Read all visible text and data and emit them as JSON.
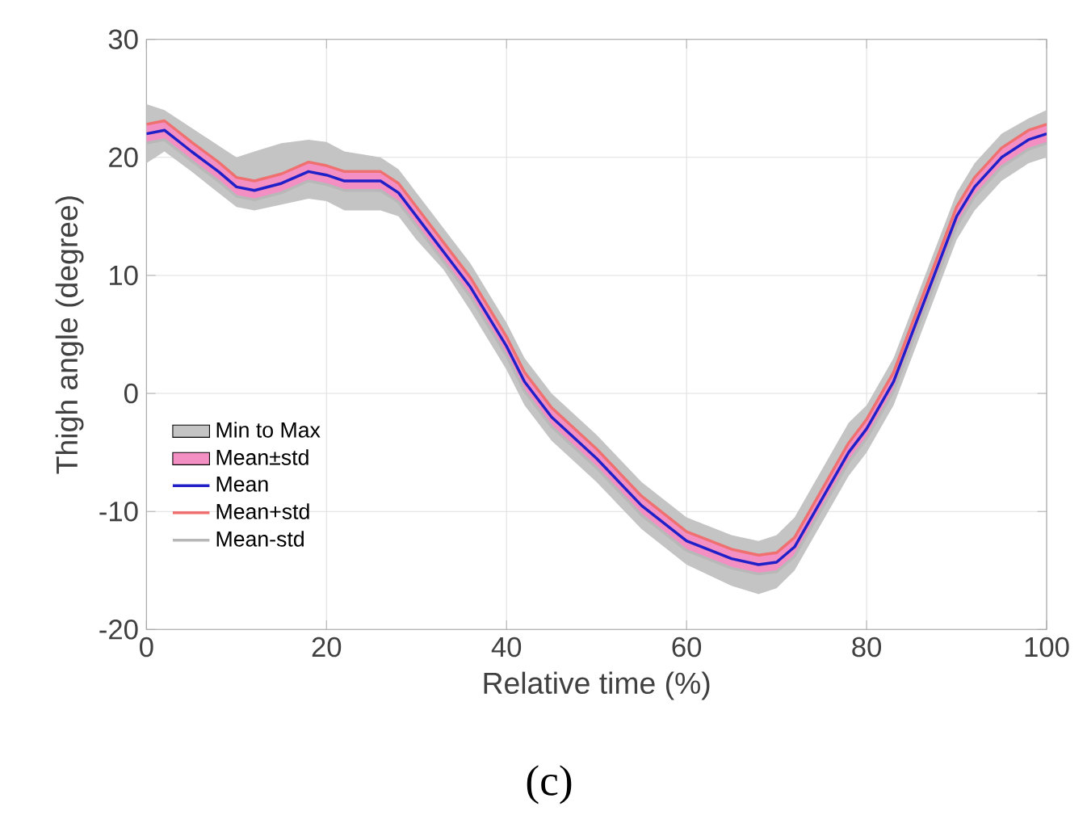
{
  "chart_data": {
    "type": "line",
    "xlabel": "Relative time (%)",
    "ylabel": "Thigh angle (degree)",
    "x": [
      0,
      2,
      5,
      8,
      10,
      12,
      15,
      18,
      20,
      22,
      26,
      28,
      30,
      33,
      36,
      40,
      42,
      45,
      50,
      55,
      60,
      65,
      68,
      70,
      72,
      75,
      78,
      80,
      83,
      86,
      88,
      90,
      92,
      95,
      98,
      100
    ],
    "series": [
      {
        "name": "Min to Max",
        "type": "area",
        "color": "#c4c4c4",
        "values": [
          null,
          null,
          null,
          null,
          null,
          null,
          null,
          null,
          null,
          null,
          null,
          null,
          null,
          null,
          null,
          null,
          null,
          null,
          null,
          null,
          null,
          null,
          null,
          null,
          null,
          null,
          null,
          null,
          null,
          null,
          null,
          null,
          null,
          null,
          null,
          null
        ],
        "upper": [
          24.5,
          24,
          22.5,
          21,
          20,
          20.5,
          21.2,
          21.5,
          21.3,
          20.5,
          20,
          19,
          17,
          14,
          11,
          6,
          3,
          0,
          -3.5,
          -7.5,
          -10.5,
          -12,
          -12.5,
          -12,
          -10.5,
          -6.5,
          -2.5,
          -1,
          3,
          9,
          13,
          17,
          19.5,
          22,
          23.3,
          24
        ],
        "lower": [
          19.5,
          20.5,
          18.8,
          17,
          15.8,
          15.5,
          16,
          16.5,
          16.3,
          15.5,
          15.5,
          15,
          13,
          10.5,
          7,
          2,
          -1,
          -4,
          -7.5,
          -11.5,
          -14.5,
          -16.3,
          -17,
          -16.5,
          -15,
          -11,
          -7,
          -5,
          -1,
          5,
          9,
          13,
          15.5,
          18,
          19.5,
          20
        ]
      },
      {
        "name": "Mean±std",
        "type": "area",
        "color": "#f48fc4",
        "values": [
          null,
          null,
          null,
          null,
          null,
          null,
          null,
          null,
          null,
          null,
          null,
          null,
          null,
          null,
          null,
          null,
          null,
          null,
          null,
          null,
          null,
          null,
          null,
          null,
          null,
          null,
          null,
          null,
          null,
          null,
          null,
          null,
          null,
          null,
          null,
          null
        ],
        "upper": [
          22.8,
          23.1,
          21.3,
          19.6,
          18.3,
          18,
          18.6,
          19.6,
          19.3,
          18.8,
          18.8,
          17.8,
          15.8,
          12.8,
          9.8,
          4.8,
          1.8,
          -1.2,
          -4.7,
          -8.7,
          -11.7,
          -13.2,
          -13.7,
          -13.5,
          -12.2,
          -8.2,
          -4.2,
          -2.2,
          1.8,
          7.8,
          11.8,
          15.8,
          18.3,
          20.8,
          22.3,
          22.8
        ],
        "lower": [
          21.2,
          21.5,
          19.7,
          18,
          16.7,
          16.4,
          17,
          18,
          17.7,
          17.2,
          17.2,
          16.2,
          14.2,
          11.2,
          8.2,
          3.2,
          0.2,
          -2.8,
          -6.3,
          -10.3,
          -13.3,
          -14.8,
          -15.3,
          -15.1,
          -13.8,
          -9.8,
          -5.8,
          -3.8,
          0.2,
          6.2,
          10.2,
          14.2,
          16.7,
          19.2,
          20.7,
          21.2
        ]
      },
      {
        "name": "Mean",
        "color": "#2020c8",
        "values": [
          22,
          22.3,
          20.5,
          18.8,
          17.5,
          17.2,
          17.8,
          18.8,
          18.5,
          18,
          18,
          17,
          15,
          12,
          9,
          4,
          1,
          -2,
          -5.5,
          -9.5,
          -12.5,
          -14,
          -14.5,
          -14.3,
          -13,
          -9,
          -5,
          -3,
          1,
          7,
          11,
          15,
          17.5,
          20,
          21.5,
          22
        ]
      },
      {
        "name": "Mean+std",
        "type": "line",
        "color": "#f07070",
        "values": [
          22.8,
          23.1,
          21.3,
          19.6,
          18.3,
          18,
          18.6,
          19.6,
          19.3,
          18.8,
          18.8,
          17.8,
          15.8,
          12.8,
          9.8,
          4.8,
          1.8,
          -1.2,
          -4.7,
          -8.7,
          -11.7,
          -13.2,
          -13.7,
          -13.5,
          -12.2,
          -8.2,
          -4.2,
          -2.2,
          1.8,
          7.8,
          11.8,
          15.8,
          18.3,
          20.8,
          22.3,
          22.8
        ]
      },
      {
        "name": "Mean-std",
        "type": "line",
        "color": "#b8b8b8",
        "values": [
          21.2,
          21.5,
          19.7,
          18,
          16.7,
          16.4,
          17,
          18,
          17.7,
          17.2,
          17.2,
          16.2,
          14.2,
          11.2,
          8.2,
          3.2,
          0.2,
          -2.8,
          -6.3,
          -10.3,
          -13.3,
          -14.8,
          -15.3,
          -15.1,
          -13.8,
          -9.8,
          -5.8,
          -3.8,
          0.2,
          6.2,
          10.2,
          14.2,
          16.7,
          19.2,
          20.7,
          21.2
        ]
      }
    ],
    "xlim": [
      0,
      100
    ],
    "ylim": [
      -20,
      30
    ],
    "xticks": [
      0,
      20,
      40,
      60,
      80,
      100
    ],
    "yticks": [
      -20,
      -10,
      0,
      10,
      20,
      30
    ],
    "grid": true,
    "legend": "left",
    "annotations": [
      "(c)"
    ]
  }
}
